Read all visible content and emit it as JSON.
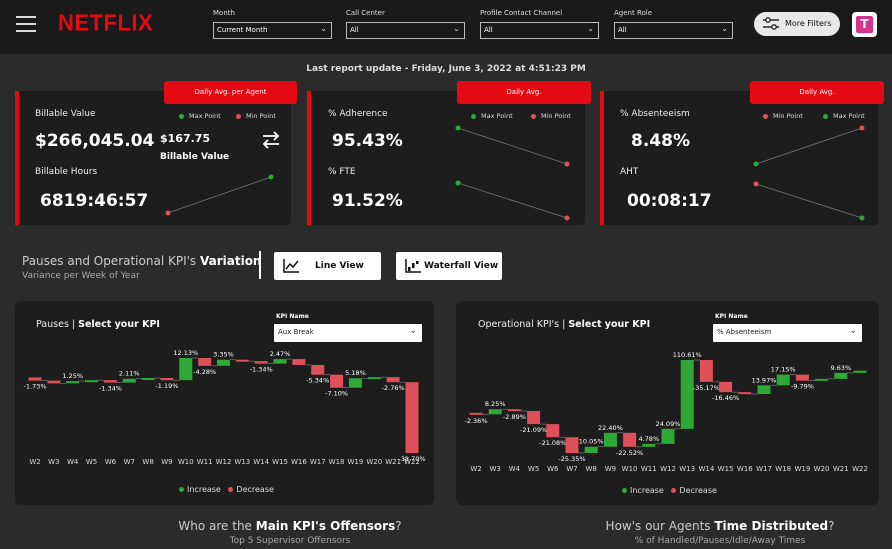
{
  "header": {
    "brand": "NETFLIX",
    "filters": [
      {
        "label": "Month",
        "value": "Current Month"
      },
      {
        "label": "Call Center",
        "value": "All"
      },
      {
        "label": "Profile Contact Channel",
        "value": "All"
      },
      {
        "label": "Agent Role",
        "value": "All"
      }
    ],
    "more_filters": "More Filters",
    "user_badge": "T"
  },
  "last_update": "Last report update - Friday, June 3, 2022 at 4:51:23 PM",
  "cards": [
    {
      "tag": "Daily Avg. per Agent",
      "max_label": "Max Point",
      "min_label": "Min Point",
      "metric1_label": "Billable Value",
      "metric1_value": "$266,045.04",
      "metric2_label": "Billable Hours",
      "metric2_value": "6819:46:57",
      "side_value": "$167.75",
      "side_label": "Billable Value",
      "swap_icon": "swap-arrows-icon"
    },
    {
      "tag": "Daily Avg.",
      "max_label": "Max Point",
      "min_label": "Min Point",
      "metric1_label": "% Adherence",
      "metric1_value": "95.43%",
      "metric2_label": "% FTE",
      "metric2_value": "91.52%"
    },
    {
      "tag": "Daily Avg.",
      "max_label": "Max Point",
      "min_label": "Min Point",
      "metric1_label": "% Absenteeism",
      "metric1_value": "8.48%",
      "metric2_label": "AHT",
      "metric2_value": "00:08:17"
    }
  ],
  "section": {
    "title_prefix": "Pauses and Operational KPI's ",
    "title_bold": "Variation",
    "subtitle": "Variance per Week of Year",
    "line_view": "Line View",
    "waterfall_view": "Waterfall View"
  },
  "panels": [
    {
      "title_prefix": "Pauses | ",
      "title_bold": "Select your KPI",
      "kpi_label": "KPI Name",
      "kpi_value": "Aux Break",
      "legend_increase": "Increase",
      "legend_decrease": "Decrease"
    },
    {
      "title_prefix": "Operational KPI's | ",
      "title_bold": "Select your KPI",
      "kpi_label": "KPI Name",
      "kpi_value": "% Absenteeism",
      "legend_increase": "Increase",
      "legend_decrease": "Decrease"
    }
  ],
  "bottom": {
    "left_prefix": "Who are the ",
    "left_bold": "Main KPI's Offensors",
    "left_suffix": "?",
    "left_sub": "Top 5 Supervisor Offensors",
    "right_prefix": "How's our Agents ",
    "right_bold": "Time Distributed",
    "right_suffix": "?",
    "right_sub": "% of Handled/Pauses/Idle/Away Times"
  },
  "colors": {
    "increase": "#2ea836",
    "decrease": "#e0505a",
    "brand": "#e50914"
  },
  "chart_data": [
    {
      "type": "waterfall",
      "categories": [
        "W2",
        "W3",
        "W4",
        "W5",
        "W6",
        "W7",
        "W8",
        "W9",
        "W10",
        "W11",
        "W12",
        "W13",
        "W14",
        "W15",
        "W16",
        "W17",
        "W18",
        "W19",
        "W20",
        "W21",
        "W22"
      ],
      "values": [
        -1.73,
        -1.5,
        1.25,
        0.5,
        -1.34,
        2.11,
        0.4,
        -1.19,
        12.13,
        -4.28,
        3.35,
        -0.8,
        -1.34,
        2.47,
        -3.2,
        -5.34,
        -7.1,
        5.18,
        0.6,
        -2.76,
        -38.7
      ],
      "labels": [
        "-1.73%",
        "",
        "1.25%",
        "",
        "-1.34%",
        "2.11%",
        "",
        "-1.19%",
        "12.13%",
        "-4.28%",
        "3.35%",
        "",
        "-1.34%",
        "2.47%",
        "",
        "-5.34%",
        "-7.10%",
        "5.18%",
        "",
        "-2.76%",
        "-38.70%"
      ]
    },
    {
      "type": "waterfall",
      "categories": [
        "W2",
        "W3",
        "W4",
        "W5",
        "W6",
        "W7",
        "W8",
        "W9",
        "W10",
        "W11",
        "W12",
        "W13",
        "W14",
        "W15",
        "W16",
        "W17",
        "W18",
        "W19",
        "W20",
        "W21",
        "W22"
      ],
      "values": [
        -2.36,
        8.25,
        -2.89,
        -21.09,
        -21.08,
        -25.35,
        10.05,
        22.4,
        -22.52,
        4.78,
        24.09,
        110.61,
        -35.17,
        -16.46,
        -3.0,
        13.97,
        17.15,
        -9.79,
        3.0,
        9.63,
        3.5
      ],
      "labels": [
        "-2.36%",
        "8.25%",
        "-2.89%",
        "-21.09%",
        "-21.08%",
        "-25.35%",
        "10.05%",
        "22.40%",
        "-22.52%",
        "4.78%",
        "24.09%",
        "110.61%",
        "-35.17%",
        "-16.46%",
        "",
        "13.97%",
        "17.15%",
        "-9.79%",
        "",
        "9.63%",
        ""
      ]
    }
  ]
}
